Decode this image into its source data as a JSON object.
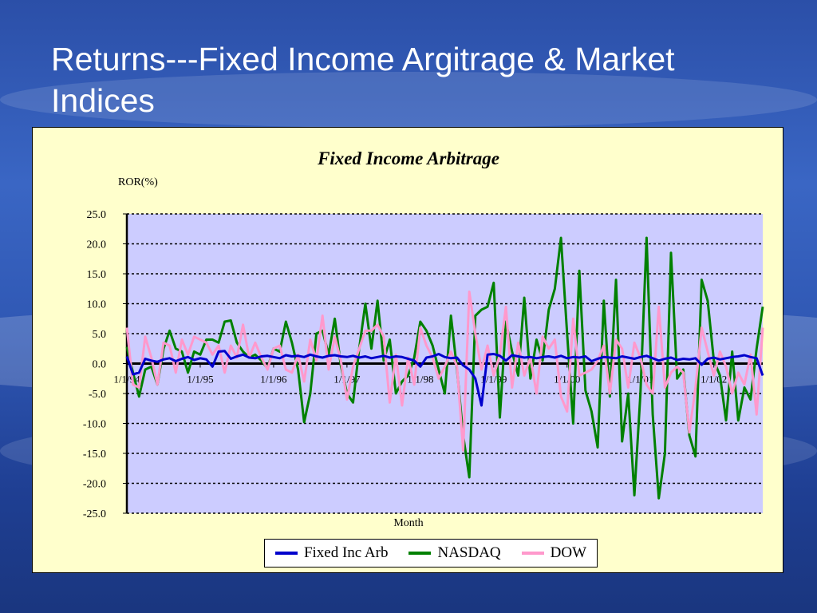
{
  "slide": {
    "title": "Returns---Fixed Income Argitrage & Market Indices"
  },
  "colors": {
    "background": "#2f57b3",
    "panel": "#ffffcc",
    "plot_area": "#ccccff",
    "fixed_inc_arb": "#0000cc",
    "nasdaq": "#008000",
    "dow": "#ff99cc"
  },
  "chart_data": {
    "type": "line",
    "title": "Fixed Income Arbitrage",
    "ylabel": "ROR(%)",
    "xlabel": "Month",
    "ylim": [
      -25,
      25
    ],
    "yticks": [
      "25.0",
      "20.0",
      "15.0",
      "10.0",
      "5.0",
      "0.0",
      "-5.0",
      "-10.0",
      "-15.0",
      "-20.0",
      "-25.0"
    ],
    "xticks": [
      "1/1/94",
      "1/1/95",
      "1/1/96",
      "1/1/97",
      "1/1/98",
      "1/1/99",
      "1/1/00",
      "1/1/01",
      "1/1/02"
    ],
    "grid": "horizontal dotted",
    "legend_position": "bottom",
    "x_start": "1/1/94",
    "x_end": "9/1/02",
    "x_step": "month",
    "series": [
      {
        "name": "Fixed Inc Arb",
        "color": "#0000cc",
        "values": [
          1.2,
          -1.8,
          -1.5,
          0.8,
          0.5,
          0.3,
          0.7,
          0.9,
          0.4,
          0.8,
          1.1,
          0.6,
          0.9,
          0.7,
          -0.5,
          2.0,
          2.1,
          0.8,
          1.2,
          1.5,
          1.0,
          0.9,
          1.2,
          1.3,
          1.1,
          0.9,
          1.4,
          1.2,
          1.3,
          1.1,
          1.5,
          1.2,
          1.0,
          1.3,
          1.4,
          1.2,
          1.1,
          1.3,
          1.0,
          1.2,
          0.9,
          1.1,
          1.3,
          1.0,
          1.2,
          1.1,
          0.8,
          0.5,
          -0.5,
          1.0,
          1.2,
          1.6,
          1.1,
          0.9,
          1.0,
          -0.3,
          -1.0,
          -2.5,
          -7.0,
          1.5,
          1.6,
          1.3,
          0.5,
          1.4,
          1.2,
          1.0,
          1.1,
          0.9,
          1.1,
          1.2,
          1.0,
          1.3,
          0.9,
          1.1,
          1.0,
          1.2,
          0.4,
          0.8,
          1.1,
          1.0,
          0.9,
          1.2,
          1.0,
          0.8,
          1.1,
          1.3,
          0.9,
          0.5,
          0.8,
          1.0,
          0.6,
          0.8,
          0.7,
          0.9,
          -0.2,
          0.8,
          1.0,
          0.7,
          0.9,
          1.1,
          1.2,
          1.4,
          1.1,
          0.9,
          -2.0
        ]
      },
      {
        "name": "NASDAQ",
        "color": "#008000",
        "values": [
          2.8,
          -1.5,
          -5.5,
          -1.0,
          -0.5,
          -3.5,
          2.5,
          5.5,
          2.5,
          2.0,
          -1.5,
          2.0,
          1.5,
          4.0,
          4.0,
          3.5,
          7.0,
          7.2,
          3.5,
          2.0,
          1.0,
          1.5,
          0.5,
          -0.8,
          2.5,
          2.0,
          7.0,
          3.5,
          -1.0,
          -9.8,
          -5.0,
          5.0,
          5.5,
          1.5,
          7.5,
          -0.3,
          -5.0,
          -6.5,
          2.5,
          10.0,
          2.5,
          10.5,
          0.5,
          4.0,
          -5.0,
          -3.0,
          -2.0,
          1.0,
          7.0,
          5.5,
          3.0,
          -1.0,
          -5.0,
          8.0,
          -1.0,
          -12.0,
          -19.0,
          8.0,
          9.0,
          9.5,
          13.5,
          -9.0,
          7.0,
          2.0,
          -2.0,
          11.0,
          -2.5,
          4.0,
          0.5,
          9.0,
          12.5,
          21.0,
          5.0,
          -10.0,
          15.5,
          -4.5,
          -8.0,
          -14.0,
          10.5,
          -5.5,
          14.0,
          -13.0,
          -5.0,
          -22.0,
          -5.0,
          21.0,
          -8.5,
          -22.5,
          -15.0,
          18.5,
          -2.5,
          -1.0,
          -12.0,
          -15.5,
          14.0,
          10.5,
          0.5,
          -2.0,
          -9.5,
          2.0,
          -9.5,
          -4.0,
          -6.0,
          2.5,
          9.5
        ]
      },
      {
        "name": "DOW",
        "color": "#ff99cc",
        "values": [
          6.0,
          -3.5,
          -4.0,
          4.5,
          1.0,
          -3.5,
          3.5,
          3.0,
          -1.5,
          4.0,
          1.5,
          4.5,
          4.0,
          3.5,
          1.5,
          3.0,
          -1.5,
          3.0,
          1.0,
          6.5,
          1.0,
          3.5,
          1.0,
          -1.0,
          2.5,
          3.0,
          -1.0,
          -1.5,
          1.5,
          -3.0,
          4.0,
          0.5,
          8.0,
          -1.0,
          4.5,
          0.5,
          -6.0,
          -0.5,
          2.5,
          5.5,
          5.5,
          6.5,
          4.5,
          -6.5,
          1.5,
          -7.0,
          1.0,
          -3.5,
          6.0,
          3.0,
          1.0,
          -2.5,
          -0.5,
          2.0,
          -0.5,
          -14.5,
          12.0,
          5.0,
          -1.0,
          3.0,
          -2.0,
          1.5,
          9.5,
          -4.0,
          3.5,
          -2.0,
          1.0,
          -5.0,
          4.5,
          2.5,
          4.0,
          -5.5,
          -8.0,
          7.5,
          -2.0,
          -1.5,
          -1.0,
          0.5,
          3.0,
          -5.0,
          4.0,
          2.5,
          -4.0,
          3.5,
          1.0,
          -3.5,
          -5.0,
          9.5,
          -4.0,
          -1.5,
          -0.5,
          -1.5,
          -11.5,
          -4.0,
          6.0,
          2.0,
          -2.0,
          2.0,
          -0.5,
          -5.0,
          -1.5,
          -3.5,
          1.5,
          -8.5,
          6.0
        ]
      }
    ]
  }
}
